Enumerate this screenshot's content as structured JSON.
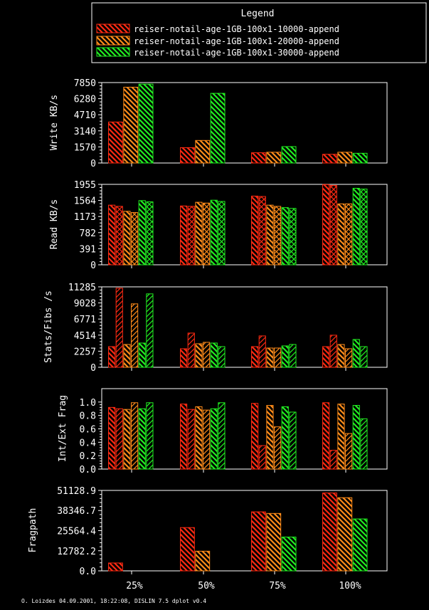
{
  "legend": {
    "title": "Legend",
    "entries": [
      {
        "label": "reiser-notail-age-1GB-100x1-10000-append",
        "color": "#ff2a12"
      },
      {
        "label": "reiser-notail-age-1GB-100x1-20000-append",
        "color": "#ff8c1a"
      },
      {
        "label": "reiser-notail-age-1GB-100x1-30000-append",
        "color": "#22ee22"
      }
    ]
  },
  "footer": "O. Loizdes 04.09.2001, 18:22:08, DISLIN 7.5 dplot v0.4",
  "chart_data": [
    {
      "type": "bar",
      "ylabel": "Write KB/s",
      "categories": [
        "25%",
        "50%",
        "75%",
        "100%"
      ],
      "ylim": [
        0,
        7850
      ],
      "yticks": [
        "0",
        "1570",
        "3140",
        "4710",
        "6280",
        "7850"
      ],
      "bars_per_series": 1,
      "series": [
        {
          "values": [
            [
              4000
            ],
            [
              1500
            ],
            [
              1000
            ],
            [
              850
            ]
          ]
        },
        {
          "values": [
            [
              7400
            ],
            [
              2200
            ],
            [
              1050
            ],
            [
              1050
            ]
          ]
        },
        {
          "values": [
            [
              7700
            ],
            [
              6800
            ],
            [
              1600
            ],
            [
              950
            ]
          ]
        }
      ]
    },
    {
      "type": "bar",
      "ylabel": "Read KB/s",
      "categories": [
        "25%",
        "50%",
        "75%",
        "100%"
      ],
      "ylim": [
        0,
        1955
      ],
      "yticks": [
        "0",
        "391",
        "782",
        "1173",
        "1564",
        "1955"
      ],
      "bars_per_series": 2,
      "series": [
        {
          "values": [
            [
              1450,
              1420
            ],
            [
              1430,
              1420
            ],
            [
              1670,
              1660
            ],
            [
              1950,
              1930
            ]
          ]
        },
        {
          "values": [
            [
              1300,
              1270
            ],
            [
              1520,
              1500
            ],
            [
              1450,
              1420
            ],
            [
              1480,
              1480
            ]
          ]
        },
        {
          "values": [
            [
              1560,
              1530
            ],
            [
              1570,
              1540
            ],
            [
              1390,
              1370
            ],
            [
              1860,
              1840
            ]
          ]
        }
      ]
    },
    {
      "type": "bar",
      "ylabel": "Stats/Fibs /s",
      "categories": [
        "25%",
        "50%",
        "75%",
        "100%"
      ],
      "ylim": [
        0,
        11285
      ],
      "yticks": [
        "0",
        "2257",
        "4514",
        "6771",
        "9028",
        "11285"
      ],
      "bars_per_series": 2,
      "series": [
        {
          "values": [
            [
              2900,
              11100
            ],
            [
              2600,
              4800
            ],
            [
              2900,
              4400
            ],
            [
              2900,
              4500
            ]
          ]
        },
        {
          "values": [
            [
              3200,
              8900
            ],
            [
              3300,
              3500
            ],
            [
              2700,
              2700
            ],
            [
              3200,
              2600
            ]
          ]
        },
        {
          "values": [
            [
              3400,
              10300
            ],
            [
              3400,
              2900
            ],
            [
              3000,
              3200
            ],
            [
              3900,
              2900
            ]
          ]
        }
      ]
    },
    {
      "type": "bar",
      "ylabel": "Int/Ext Frag",
      "categories": [
        "25%",
        "50%",
        "75%",
        "100%"
      ],
      "ylim": [
        0,
        1.2
      ],
      "yticks": [
        "0.0",
        "0.2",
        "0.4",
        "0.6",
        "0.8",
        "1.0"
      ],
      "bars_per_series": 2,
      "series": [
        {
          "values": [
            [
              0.92,
              0.9
            ],
            [
              0.97,
              0.89
            ],
            [
              0.98,
              0.35
            ],
            [
              0.99,
              0.28
            ]
          ]
        },
        {
          "values": [
            [
              0.89,
              0.99
            ],
            [
              0.93,
              0.88
            ],
            [
              0.95,
              0.63
            ],
            [
              0.97,
              0.53
            ]
          ]
        },
        {
          "values": [
            [
              0.9,
              0.99
            ],
            [
              0.9,
              0.99
            ],
            [
              0.93,
              0.85
            ],
            [
              0.95,
              0.75
            ]
          ]
        }
      ]
    },
    {
      "type": "bar",
      "ylabel": "Fragpath",
      "categories": [
        "25%",
        "50%",
        "75%",
        "100%"
      ],
      "ylim": [
        0,
        51128.9
      ],
      "yticks": [
        "0.0",
        "12782.2",
        "25564.4",
        "38346.7",
        "51128.9"
      ],
      "bars_per_series": 1,
      "series": [
        {
          "values": [
            [
              5000
            ],
            [
              27500
            ],
            [
              37500
            ],
            [
              49500
            ]
          ]
        },
        {
          "values": [
            [
              0
            ],
            [
              12500
            ],
            [
              36500
            ],
            [
              46500
            ]
          ]
        },
        {
          "values": [
            [
              0
            ],
            [
              0
            ],
            [
              21500
            ],
            [
              33000
            ]
          ]
        }
      ]
    }
  ]
}
